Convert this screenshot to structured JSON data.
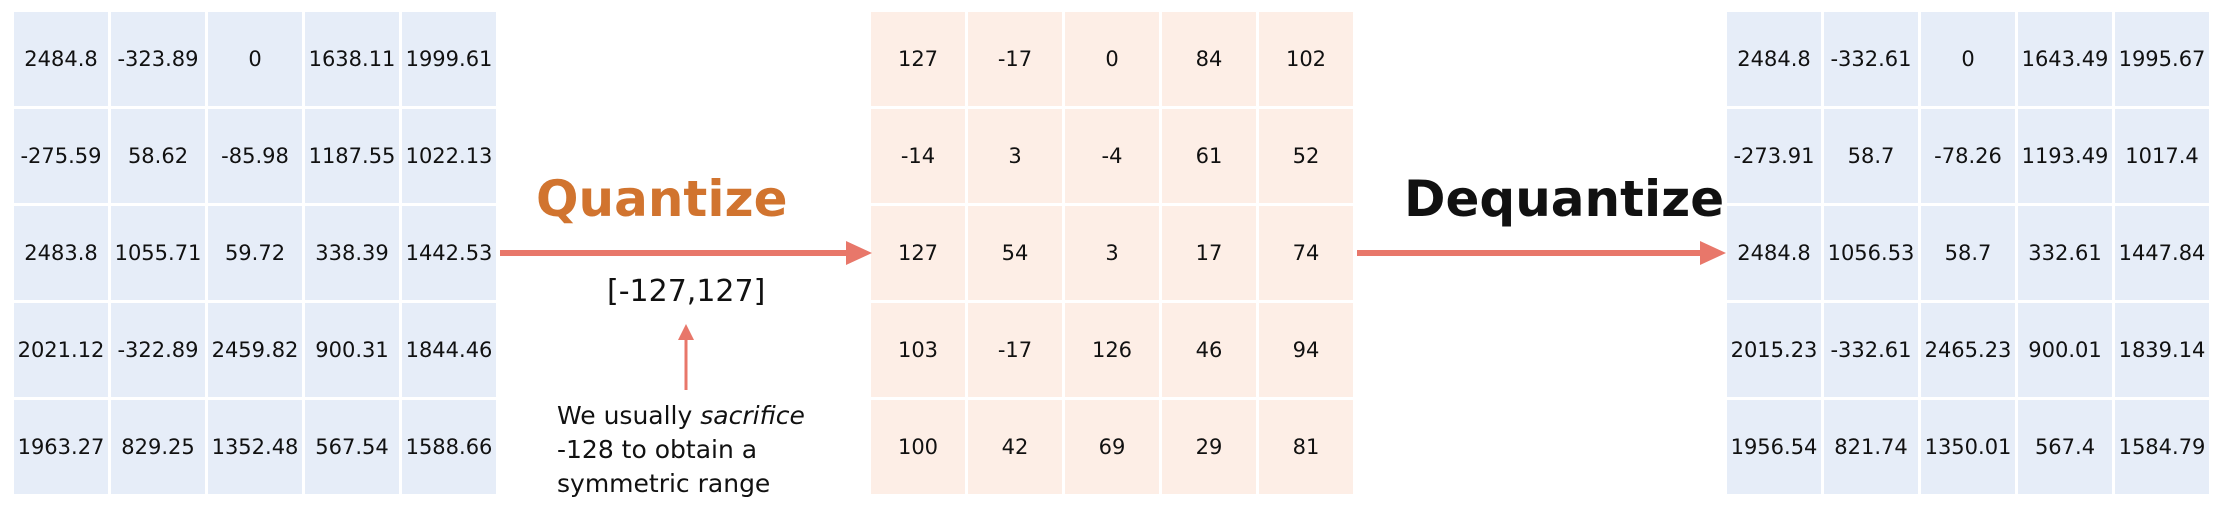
{
  "matrices": {
    "original": [
      [
        "2484.8",
        "-323.89",
        "0",
        "1638.11",
        "1999.61"
      ],
      [
        "-275.59",
        "58.62",
        "-85.98",
        "1187.55",
        "1022.13"
      ],
      [
        "2483.8",
        "1055.71",
        "59.72",
        "338.39",
        "1442.53"
      ],
      [
        "2021.12",
        "-322.89",
        "2459.82",
        "900.31",
        "1844.46"
      ],
      [
        "1963.27",
        "829.25",
        "1352.48",
        "567.54",
        "1588.66"
      ]
    ],
    "quantized": [
      [
        "127",
        "-17",
        "0",
        "84",
        "102"
      ],
      [
        "-14",
        "3",
        "-4",
        "61",
        "52"
      ],
      [
        "127",
        "54",
        "3",
        "17",
        "74"
      ],
      [
        "103",
        "-17",
        "126",
        "46",
        "94"
      ],
      [
        "100",
        "42",
        "69",
        "29",
        "81"
      ]
    ],
    "dequantized": [
      [
        "2484.8",
        "-332.61",
        "0",
        "1643.49",
        "1995.67"
      ],
      [
        "-273.91",
        "58.7",
        "-78.26",
        "1193.49",
        "1017.4"
      ],
      [
        "2484.8",
        "1056.53",
        "58.7",
        "332.61",
        "1447.84"
      ],
      [
        "2015.23",
        "-332.61",
        "2465.23",
        "900.01",
        "1839.14"
      ],
      [
        "1956.54",
        "821.74",
        "1350.01",
        "567.4",
        "1584.79"
      ]
    ]
  },
  "labels": {
    "quantize": "Quantize",
    "dequantize": "Dequantize",
    "range": "[-127,127]",
    "note_pre": "We usually ",
    "note_em": "sacrifice",
    "note_line2": "-128 to obtain a",
    "note_line3": "symmetric range"
  },
  "colors": {
    "quantize_title": "#d1742f",
    "arrow": "#e8776a",
    "original_cells": "#e6edf8",
    "quantized_cells": "#fdeee6",
    "dequantized_cells": "#e6edf8"
  }
}
